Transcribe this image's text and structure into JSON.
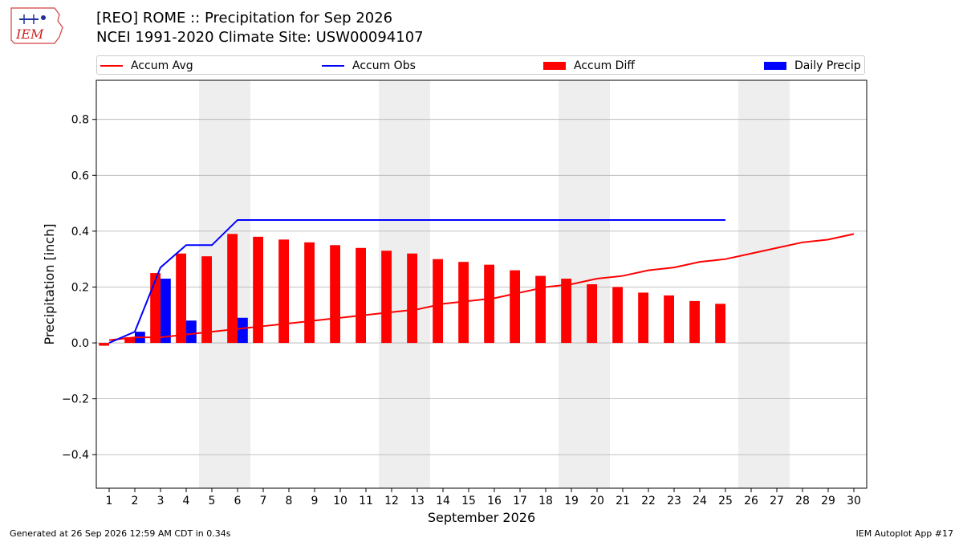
{
  "header": {
    "title_line1": "[REO] ROME :: Precipitation for Sep 2026",
    "title_line2": "NCEI 1991-2020 Climate Site: USW00094107",
    "logo_text": "IEM"
  },
  "legend": {
    "items": [
      {
        "label": "Accum Avg",
        "color": "#ff0000",
        "kind": "line"
      },
      {
        "label": "Accum Obs",
        "color": "#0000ff",
        "kind": "line"
      },
      {
        "label": "Accum Diff",
        "color": "#ff0000",
        "kind": "box"
      },
      {
        "label": "Daily Precip",
        "color": "#0000ff",
        "kind": "box"
      }
    ]
  },
  "footer": {
    "left": "Generated at 26 Sep 2026 12:59 AM CDT in 0.34s",
    "right": "IEM Autoplot App #17"
  },
  "chart_data": {
    "type": "bar",
    "xlabel": "September 2026",
    "ylabel": "Precipitation [inch]",
    "xlim": [
      0.5,
      30.5
    ],
    "ylim": [
      -0.52,
      0.94
    ],
    "yticks": [
      -0.4,
      -0.2,
      0.0,
      0.2,
      0.4,
      0.6,
      0.8
    ],
    "ytick_labels": [
      "−0.4",
      "−0.2",
      "0.0",
      "0.2",
      "0.4",
      "0.6",
      "0.8"
    ],
    "days": [
      1,
      2,
      3,
      4,
      5,
      6,
      7,
      8,
      9,
      10,
      11,
      12,
      13,
      14,
      15,
      16,
      17,
      18,
      19,
      20,
      21,
      22,
      23,
      24,
      25,
      26,
      27,
      28,
      29,
      30
    ],
    "weekend_days": [
      5,
      6,
      12,
      13,
      19,
      20,
      26,
      27
    ],
    "grid": "y",
    "colors": {
      "avg": "#ff0000",
      "obs": "#0000ff",
      "diff": "#ff0000",
      "daily": "#0000ff",
      "weekend": "#eeeeee",
      "grid": "#b0b0b0"
    },
    "series": [
      {
        "name": "Accum Avg",
        "type": "line",
        "values": [
          0.01,
          0.02,
          0.02,
          0.03,
          0.04,
          0.05,
          0.06,
          0.07,
          0.08,
          0.09,
          0.1,
          0.11,
          0.12,
          0.14,
          0.15,
          0.16,
          0.18,
          0.2,
          0.21,
          0.23,
          0.24,
          0.26,
          0.27,
          0.29,
          0.3,
          0.32,
          0.34,
          0.36,
          0.37,
          0.39
        ]
      },
      {
        "name": "Accum Obs",
        "type": "line",
        "values": [
          0.0,
          0.04,
          0.27,
          0.35,
          0.35,
          0.44,
          0.44,
          0.44,
          0.44,
          0.44,
          0.44,
          0.44,
          0.44,
          0.44,
          0.44,
          0.44,
          0.44,
          0.44,
          0.44,
          0.44,
          0.44,
          0.44,
          0.44,
          0.44,
          0.44
        ]
      },
      {
        "name": "Accum Diff",
        "type": "bar",
        "values": [
          -0.01,
          0.02,
          0.25,
          0.32,
          0.31,
          0.39,
          0.38,
          0.37,
          0.36,
          0.35,
          0.34,
          0.33,
          0.32,
          0.3,
          0.29,
          0.28,
          0.26,
          0.24,
          0.23,
          0.21,
          0.2,
          0.18,
          0.17,
          0.15,
          0.14
        ]
      },
      {
        "name": "Daily Precip",
        "type": "bar",
        "values": [
          0.0,
          0.04,
          0.23,
          0.08,
          0.0,
          0.09,
          0.0,
          0.0,
          0.0,
          0.0,
          0.0,
          0.0,
          0.0,
          0.0,
          0.0,
          0.0,
          0.0,
          0.0,
          0.0,
          0.0,
          0.0,
          0.0,
          0.0,
          0.0,
          0.0
        ]
      }
    ]
  }
}
